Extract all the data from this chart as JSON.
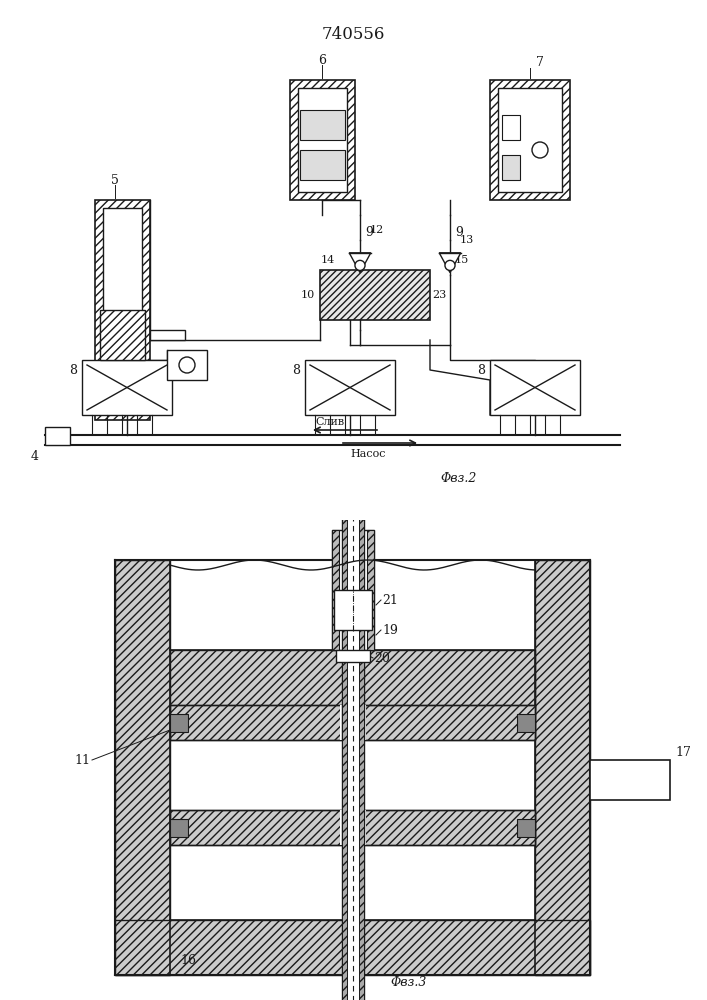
{
  "title": "740556",
  "line_color": "#1a1a1a",
  "hatch_color": "#333333",
  "font_size_title": 12,
  "font_size_label": 8,
  "fig2_caption": "Φвз.2",
  "fig3_caption": "Φвз.3",
  "sliv_text": "Слив",
  "nasos_text": "Насос"
}
